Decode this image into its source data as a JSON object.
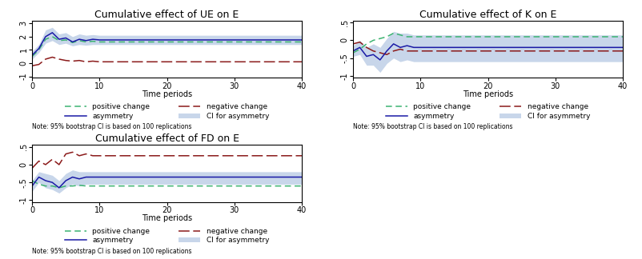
{
  "chart_data": [
    {
      "type": "line",
      "title": "Cumulative effect of UE on E",
      "x_label": "Time periods",
      "note": "Note: 95% bootstrap CI is based on 100 replications",
      "legend": "below",
      "x": [
        0,
        1,
        2,
        3,
        4,
        5,
        6,
        7,
        8,
        9,
        10,
        11,
        12,
        13,
        14,
        15,
        16,
        17,
        18,
        19,
        20,
        21,
        22,
        23,
        24,
        25,
        26,
        27,
        28,
        29,
        30,
        31,
        32,
        33,
        34,
        35,
        36,
        37,
        38,
        39,
        40
      ],
      "xlim": [
        0,
        40
      ],
      "xticks": [
        0,
        10,
        20,
        30,
        40
      ],
      "ylim": [
        -1.1,
        3.2
      ],
      "yticks": [
        -1,
        0,
        1,
        2,
        3
      ],
      "series": [
        {
          "name": "positive change",
          "color": "#3cb371",
          "line_style": "dashed",
          "values": [
            0.5,
            1.0,
            1.8,
            2.0,
            1.7,
            1.75,
            1.55,
            1.7,
            1.6,
            1.65,
            1.6,
            1.6,
            1.6,
            1.6,
            1.6,
            1.6,
            1.6,
            1.6,
            1.6,
            1.6,
            1.6,
            1.6,
            1.6,
            1.6,
            1.6,
            1.6,
            1.6,
            1.6,
            1.6,
            1.6,
            1.6,
            1.6,
            1.6,
            1.6,
            1.6,
            1.6,
            1.6,
            1.6,
            1.6,
            1.6,
            1.6
          ]
        },
        {
          "name": "negative change",
          "color": "#8b1a1a",
          "line_style": "longdash",
          "values": [
            -0.2,
            -0.1,
            0.3,
            0.45,
            0.3,
            0.2,
            0.15,
            0.2,
            0.1,
            0.15,
            0.1,
            0.1,
            0.1,
            0.1,
            0.1,
            0.1,
            0.1,
            0.1,
            0.1,
            0.1,
            0.1,
            0.1,
            0.1,
            0.1,
            0.1,
            0.1,
            0.1,
            0.1,
            0.1,
            0.1,
            0.1,
            0.1,
            0.1,
            0.1,
            0.1,
            0.1,
            0.1,
            0.1,
            0.1,
            0.1,
            0.1
          ]
        },
        {
          "name": "asymmetry",
          "color": "#1a1aa6",
          "line_style": "solid",
          "values": [
            0.6,
            1.1,
            2.0,
            2.3,
            1.8,
            1.9,
            1.6,
            1.8,
            1.7,
            1.8,
            1.75,
            1.75,
            1.75,
            1.75,
            1.75,
            1.75,
            1.75,
            1.75,
            1.75,
            1.75,
            1.75,
            1.75,
            1.75,
            1.75,
            1.75,
            1.75,
            1.75,
            1.75,
            1.75,
            1.75,
            1.75,
            1.75,
            1.75,
            1.75,
            1.75,
            1.75,
            1.75,
            1.75,
            1.75,
            1.75,
            1.75
          ]
        },
        {
          "name": "CI for asymmetry",
          "type": "band",
          "color": "#c8d6ea",
          "lower": [
            0.3,
            0.8,
            1.5,
            1.7,
            1.4,
            1.5,
            1.3,
            1.4,
            1.35,
            1.4,
            1.4,
            1.4,
            1.4,
            1.4,
            1.4,
            1.4,
            1.4,
            1.4,
            1.4,
            1.4,
            1.4,
            1.4,
            1.4,
            1.4,
            1.4,
            1.4,
            1.4,
            1.4,
            1.4,
            1.4,
            1.4,
            1.4,
            1.4,
            1.4,
            1.4,
            1.4,
            1.4,
            1.4,
            1.4,
            1.4,
            1.4
          ],
          "upper": [
            0.9,
            1.4,
            2.5,
            2.7,
            2.2,
            2.3,
            2.0,
            2.2,
            2.1,
            2.15,
            2.1,
            2.1,
            2.1,
            2.1,
            2.1,
            2.1,
            2.1,
            2.1,
            2.1,
            2.1,
            2.1,
            2.1,
            2.1,
            2.1,
            2.1,
            2.1,
            2.1,
            2.1,
            2.1,
            2.1,
            2.1,
            2.1,
            2.1,
            2.1,
            2.1,
            2.1,
            2.1,
            2.1,
            2.1,
            2.1,
            2.1
          ]
        }
      ]
    },
    {
      "type": "line",
      "title": "Cumulative effect of K on E",
      "x_label": "Time periods",
      "note": "Note: 95% bootstrap CI is based on 100 replications",
      "legend": "below",
      "x": [
        0,
        1,
        2,
        3,
        4,
        5,
        6,
        7,
        8,
        9,
        10,
        11,
        12,
        13,
        14,
        15,
        16,
        17,
        18,
        19,
        20,
        21,
        22,
        23,
        24,
        25,
        26,
        27,
        28,
        29,
        30,
        31,
        32,
        33,
        34,
        35,
        36,
        37,
        38,
        39,
        40
      ],
      "xlim": [
        0,
        40
      ],
      "xticks": [
        0,
        10,
        20,
        30,
        40
      ],
      "ylim": [
        -1.05,
        0.55
      ],
      "yticks": [
        -1,
        {
          "value": -0.5,
          "label": "-.5"
        },
        0,
        {
          "value": 0.5,
          "label": ".5"
        }
      ],
      "series": [
        {
          "name": "positive change",
          "color": "#3cb371",
          "line_style": "dashed",
          "values": [
            -0.35,
            -0.25,
            -0.1,
            0.0,
            0.05,
            0.1,
            0.2,
            0.15,
            0.1,
            0.1,
            0.1,
            0.1,
            0.1,
            0.1,
            0.1,
            0.1,
            0.1,
            0.1,
            0.1,
            0.1,
            0.1,
            0.1,
            0.1,
            0.1,
            0.1,
            0.1,
            0.1,
            0.1,
            0.1,
            0.1,
            0.1,
            0.1,
            0.1,
            0.1,
            0.1,
            0.1,
            0.1,
            0.1,
            0.1,
            0.1,
            0.1
          ]
        },
        {
          "name": "negative change",
          "color": "#8b1a1a",
          "line_style": "longdash",
          "values": [
            -0.1,
            -0.05,
            -0.2,
            -0.3,
            -0.35,
            -0.4,
            -0.3,
            -0.25,
            -0.3,
            -0.3,
            -0.3,
            -0.3,
            -0.3,
            -0.3,
            -0.3,
            -0.3,
            -0.3,
            -0.3,
            -0.3,
            -0.3,
            -0.3,
            -0.3,
            -0.3,
            -0.3,
            -0.3,
            -0.3,
            -0.3,
            -0.3,
            -0.3,
            -0.3,
            -0.3,
            -0.3,
            -0.3,
            -0.3,
            -0.3,
            -0.3,
            -0.3,
            -0.3,
            -0.3,
            -0.3,
            -0.3
          ]
        },
        {
          "name": "asymmetry",
          "color": "#1a1aa6",
          "line_style": "solid",
          "values": [
            -0.3,
            -0.2,
            -0.45,
            -0.4,
            -0.55,
            -0.3,
            -0.1,
            -0.2,
            -0.15,
            -0.2,
            -0.2,
            -0.2,
            -0.2,
            -0.2,
            -0.2,
            -0.2,
            -0.2,
            -0.2,
            -0.2,
            -0.2,
            -0.2,
            -0.2,
            -0.2,
            -0.2,
            -0.2,
            -0.2,
            -0.2,
            -0.2,
            -0.2,
            -0.2,
            -0.2,
            -0.2,
            -0.2,
            -0.2,
            -0.2,
            -0.2,
            -0.2,
            -0.2,
            -0.2,
            -0.2,
            -0.2
          ]
        },
        {
          "name": "CI for asymmetry",
          "type": "band",
          "color": "#c8d6ea",
          "lower": [
            -0.45,
            -0.4,
            -0.7,
            -0.7,
            -0.9,
            -0.65,
            -0.5,
            -0.6,
            -0.55,
            -0.6,
            -0.6,
            -0.6,
            -0.6,
            -0.6,
            -0.6,
            -0.6,
            -0.6,
            -0.6,
            -0.6,
            -0.6,
            -0.6,
            -0.6,
            -0.6,
            -0.6,
            -0.6,
            -0.6,
            -0.6,
            -0.6,
            -0.6,
            -0.6,
            -0.6,
            -0.6,
            -0.6,
            -0.6,
            -0.6,
            -0.6,
            -0.6,
            -0.6,
            -0.6,
            -0.6,
            -0.6
          ],
          "upper": [
            -0.15,
            0.0,
            -0.2,
            -0.1,
            -0.2,
            0.05,
            0.25,
            0.2,
            0.2,
            0.15,
            0.15,
            0.15,
            0.15,
            0.15,
            0.15,
            0.15,
            0.15,
            0.15,
            0.15,
            0.15,
            0.15,
            0.15,
            0.15,
            0.15,
            0.15,
            0.15,
            0.15,
            0.15,
            0.15,
            0.15,
            0.15,
            0.15,
            0.15,
            0.15,
            0.15,
            0.15,
            0.15,
            0.15,
            0.15,
            0.15,
            0.15
          ]
        }
      ]
    },
    {
      "type": "line",
      "title": "Cumulative effect of FD on E",
      "x_label": "Time periods",
      "note": "Note: 95% bootstrap CI is based on 100 replications",
      "legend": "below",
      "x": [
        0,
        1,
        2,
        3,
        4,
        5,
        6,
        7,
        8,
        9,
        10,
        11,
        12,
        13,
        14,
        15,
        16,
        17,
        18,
        19,
        20,
        21,
        22,
        23,
        24,
        25,
        26,
        27,
        28,
        29,
        30,
        31,
        32,
        33,
        34,
        35,
        36,
        37,
        38,
        39,
        40
      ],
      "xlim": [
        0,
        40
      ],
      "xticks": [
        0,
        10,
        20,
        30,
        40
      ],
      "ylim": [
        -1.05,
        0.55
      ],
      "yticks": [
        -1,
        {
          "value": -0.5,
          "label": "-.5"
        },
        0,
        {
          "value": 0.5,
          "label": ".5"
        }
      ],
      "series": [
        {
          "name": "positive change",
          "color": "#3cb371",
          "line_style": "dashed",
          "values": [
            -0.45,
            -0.55,
            -0.6,
            -0.6,
            -0.65,
            -0.6,
            -0.6,
            -0.58,
            -0.6,
            -0.6,
            -0.6,
            -0.6,
            -0.6,
            -0.6,
            -0.6,
            -0.6,
            -0.6,
            -0.6,
            -0.6,
            -0.6,
            -0.6,
            -0.6,
            -0.6,
            -0.6,
            -0.6,
            -0.6,
            -0.6,
            -0.6,
            -0.6,
            -0.6,
            -0.6,
            -0.6,
            -0.6,
            -0.6,
            -0.6,
            -0.6,
            -0.6,
            -0.6,
            -0.6,
            -0.6,
            -0.6
          ]
        },
        {
          "name": "negative change",
          "color": "#8b1a1a",
          "line_style": "longdash",
          "values": [
            -0.1,
            0.1,
            0.0,
            0.15,
            0.0,
            0.3,
            0.35,
            0.25,
            0.3,
            0.25,
            0.25,
            0.25,
            0.25,
            0.25,
            0.25,
            0.25,
            0.25,
            0.25,
            0.25,
            0.25,
            0.25,
            0.25,
            0.25,
            0.25,
            0.25,
            0.25,
            0.25,
            0.25,
            0.25,
            0.25,
            0.25,
            0.25,
            0.25,
            0.25,
            0.25,
            0.25,
            0.25,
            0.25,
            0.25,
            0.25,
            0.25
          ]
        },
        {
          "name": "asymmetry",
          "color": "#1a1aa6",
          "line_style": "solid",
          "values": [
            -0.6,
            -0.35,
            -0.45,
            -0.5,
            -0.65,
            -0.45,
            -0.35,
            -0.4,
            -0.35,
            -0.35,
            -0.35,
            -0.35,
            -0.35,
            -0.35,
            -0.35,
            -0.35,
            -0.35,
            -0.35,
            -0.35,
            -0.35,
            -0.35,
            -0.35,
            -0.35,
            -0.35,
            -0.35,
            -0.35,
            -0.35,
            -0.35,
            -0.35,
            -0.35,
            -0.35,
            -0.35,
            -0.35,
            -0.35,
            -0.35,
            -0.35,
            -0.35,
            -0.35,
            -0.35,
            -0.35,
            -0.35
          ]
        },
        {
          "name": "CI for asymmetry",
          "type": "band",
          "color": "#c8d6ea",
          "lower": [
            -0.75,
            -0.5,
            -0.65,
            -0.7,
            -0.8,
            -0.65,
            -0.55,
            -0.6,
            -0.55,
            -0.55,
            -0.55,
            -0.55,
            -0.55,
            -0.55,
            -0.55,
            -0.55,
            -0.55,
            -0.55,
            -0.55,
            -0.55,
            -0.55,
            -0.55,
            -0.55,
            -0.55,
            -0.55,
            -0.55,
            -0.55,
            -0.55,
            -0.55,
            -0.55,
            -0.55,
            -0.55,
            -0.55,
            -0.55,
            -0.55,
            -0.55,
            -0.55,
            -0.55,
            -0.55,
            -0.55,
            -0.55
          ],
          "upper": [
            -0.45,
            -0.2,
            -0.25,
            -0.3,
            -0.45,
            -0.25,
            -0.15,
            -0.2,
            -0.2,
            -0.2,
            -0.2,
            -0.2,
            -0.2,
            -0.2,
            -0.2,
            -0.2,
            -0.2,
            -0.2,
            -0.2,
            -0.2,
            -0.2,
            -0.2,
            -0.2,
            -0.2,
            -0.2,
            -0.2,
            -0.2,
            -0.2,
            -0.2,
            -0.2,
            -0.2,
            -0.2,
            -0.2,
            -0.2,
            -0.2,
            -0.2,
            -0.2,
            -0.2,
            -0.2,
            -0.2,
            -0.2
          ]
        }
      ]
    }
  ]
}
